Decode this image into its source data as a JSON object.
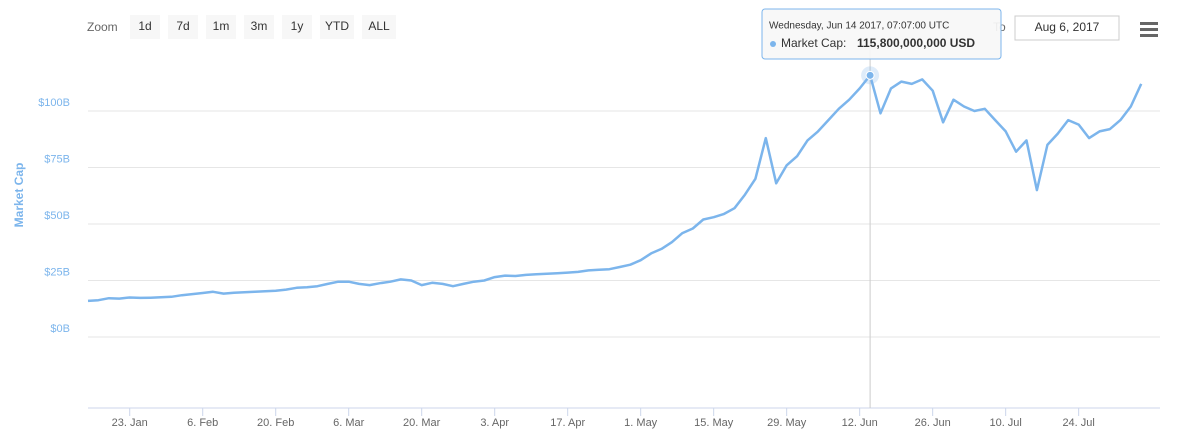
{
  "chart_data": {
    "type": "line",
    "y_axis_title": "Market Cap",
    "zoom_label": "Zoom",
    "zoom_buttons": [
      "1d",
      "7d",
      "1m",
      "3m",
      "1y",
      "YTD",
      "ALL"
    ],
    "to_label": "To",
    "to_date": "Aug 6, 2017",
    "tooltip": {
      "date": "Wednesday, Jun 14 2017, 07:07:00 UTC",
      "label": "Market Cap:",
      "value": "115,800,000,000 USD",
      "index": 75
    },
    "categories": [
      null,
      null,
      null,
      null,
      "23. Jan",
      null,
      null,
      null,
      null,
      null,
      null,
      "6. Feb",
      null,
      null,
      null,
      null,
      null,
      null,
      "20. Feb",
      null,
      null,
      null,
      null,
      null,
      null,
      "6. Mar",
      null,
      null,
      null,
      null,
      null,
      null,
      "20. Mar",
      null,
      null,
      null,
      null,
      null,
      null,
      "3. Apr",
      null,
      null,
      null,
      null,
      null,
      null,
      "17. Apr",
      null,
      null,
      null,
      null,
      null,
      null,
      "1. May",
      null,
      null,
      null,
      null,
      null,
      null,
      "15. May",
      null,
      null,
      null,
      null,
      null,
      null,
      "29. May",
      null,
      null,
      null,
      null,
      null,
      null,
      "12. Jun",
      null,
      null,
      null,
      null,
      null,
      null,
      "26. Jun",
      null,
      null,
      null,
      null,
      null,
      null,
      "10. Jul",
      null,
      null,
      null,
      null,
      null,
      null,
      "24. Jul",
      null,
      null,
      null,
      null,
      null,
      null
    ],
    "series": [
      {
        "name": "Market Cap",
        "color": "#7cb5ec",
        "values": [
          16,
          16.3,
          17.2,
          17,
          17.5,
          17.3,
          17.4,
          17.6,
          17.8,
          18.5,
          19,
          19.5,
          20,
          19.2,
          19.6,
          19.8,
          20,
          20.3,
          20.5,
          21,
          21.8,
          22,
          22.5,
          23.5,
          24.5,
          24.5,
          23.5,
          23,
          23.8,
          24.5,
          25.5,
          25,
          23,
          24,
          23.5,
          22.5,
          23.5,
          24.5,
          25,
          26.5,
          27.2,
          27,
          27.5,
          27.8,
          28,
          28.2,
          28.5,
          28.8,
          29.5,
          29.8,
          30,
          31,
          32,
          34,
          37,
          39,
          42,
          46,
          48,
          52,
          53,
          54.5,
          57,
          63,
          70,
          88,
          68,
          76,
          80,
          87,
          91,
          96,
          101,
          105,
          110,
          115.8,
          99,
          110,
          113,
          112,
          114,
          109,
          95,
          105,
          102,
          100,
          101,
          96,
          91,
          82,
          87,
          65,
          85,
          90,
          96,
          94,
          88,
          91,
          92,
          96,
          102,
          112
        ]
      }
    ],
    "ylim": [
      -31.4,
      127
    ],
    "yticks": [
      {
        "value": 0,
        "label": "$0B"
      },
      {
        "value": 25,
        "label": "$25B"
      },
      {
        "value": 50,
        "label": "$50B"
      },
      {
        "value": 75,
        "label": "$75B"
      },
      {
        "value": 100,
        "label": "$100B"
      }
    ],
    "grid": true
  }
}
